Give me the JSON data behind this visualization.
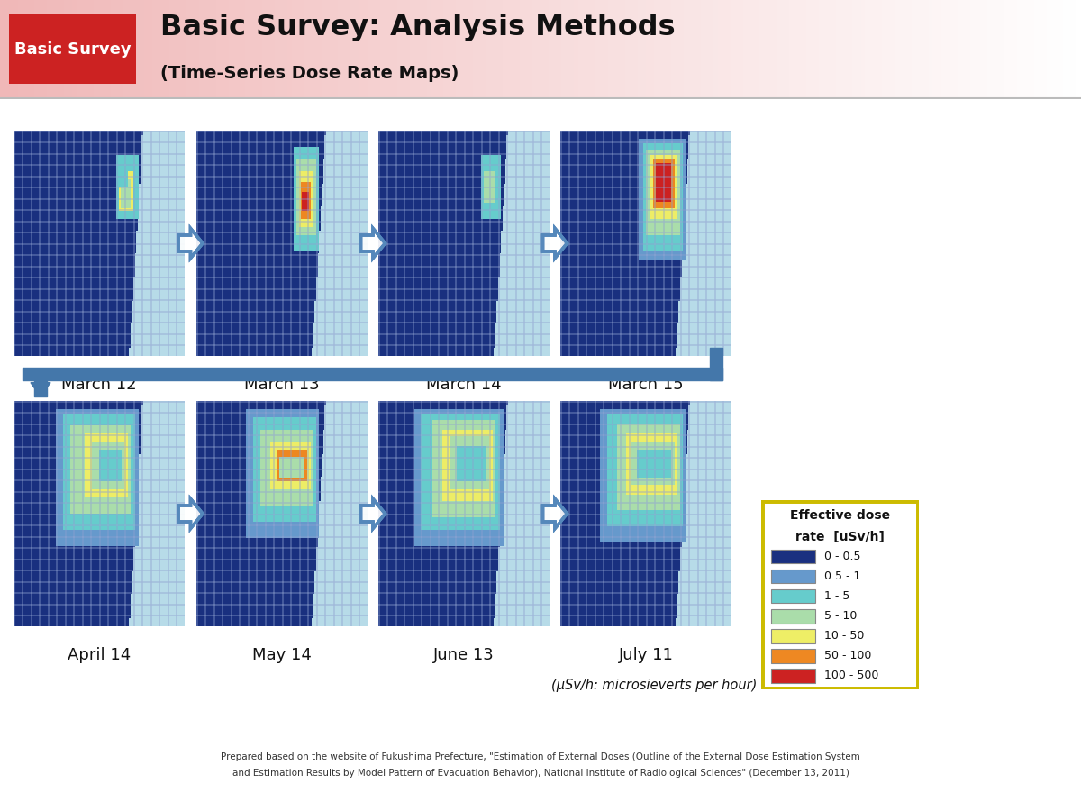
{
  "title_main": "Basic Survey: Analysis Methods",
  "title_sub": "(Time-Series Dose Rate Maps)",
  "badge_text": "Basic Survey",
  "badge_bg": "#cc2222",
  "badge_fg": "#ffffff",
  "header_bg_left": "#f0c0c0",
  "header_bg_right": "#ffffff",
  "body_bg": "#ffffff",
  "row1_labels": [
    "March 12",
    "March 13",
    "March 14",
    "March 15"
  ],
  "row2_labels": [
    "April 14",
    "May 14",
    "June 13",
    "July 11"
  ],
  "arrow_color": "#5588bb",
  "connector_color": "#4477aa",
  "legend_title_line1": "Effective dose",
  "legend_title_line2": "rate  [uSv/h]",
  "legend_entries": [
    {
      "label": "0 - 0.5",
      "color": "#1a3080"
    },
    {
      "label": "0.5 - 1",
      "color": "#6699cc"
    },
    {
      "label": "1 - 5",
      "color": "#66cccc"
    },
    {
      "label": "5 - 10",
      "color": "#aaddaa"
    },
    {
      "label": "10 - 50",
      "color": "#eeee66"
    },
    {
      "label": "50 - 100",
      "color": "#ee8822"
    },
    {
      "label": "100 - 500",
      "color": "#cc2222"
    }
  ],
  "legend_border": "#ddcc00",
  "usv_note": "(μSv/h: microsieverts per hour)",
  "footer_line1": "Prepared based on the website of Fukushima Prefecture, \"Estimation of External Doses (Outline of the External Dose Estimation System",
  "footer_line2": "and Estimation Results by Model Pattern of Evacuation Behavior), National Institute of Radiological Sciences\" (December 13, 2011)",
  "map_ocean": "#b8dce8",
  "map_dark_blue": "#1a3080",
  "map_med_blue": "#3366aa",
  "map_light_blue": "#6699cc",
  "map_cyan": "#66cccc",
  "map_light_green": "#aaddaa",
  "map_yellow": "#eeee66",
  "map_orange": "#ee8822",
  "map_red": "#cc2222",
  "grid_color": "#3355aa"
}
